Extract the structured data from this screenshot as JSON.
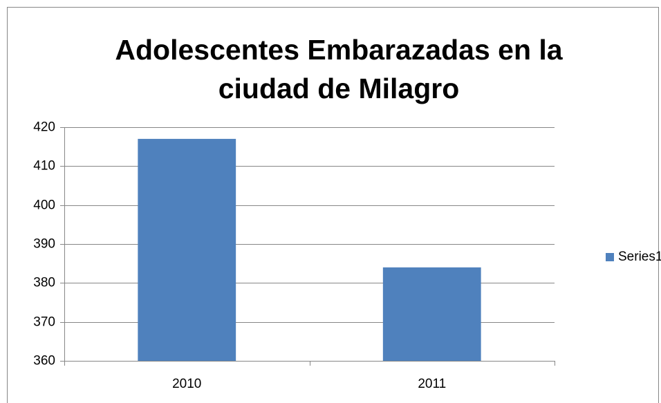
{
  "chart_data": {
    "type": "bar",
    "title": "Adolescentes Embarazadas en la ciudad de Milagro",
    "categories": [
      "2010",
      "2011"
    ],
    "series": [
      {
        "name": "Series1",
        "color": "#4f81bd",
        "values": [
          417,
          384
        ]
      }
    ],
    "ylim": [
      360,
      420
    ],
    "yticks": [
      360,
      370,
      380,
      390,
      400,
      410,
      420
    ],
    "grid": true,
    "legend": "right"
  }
}
